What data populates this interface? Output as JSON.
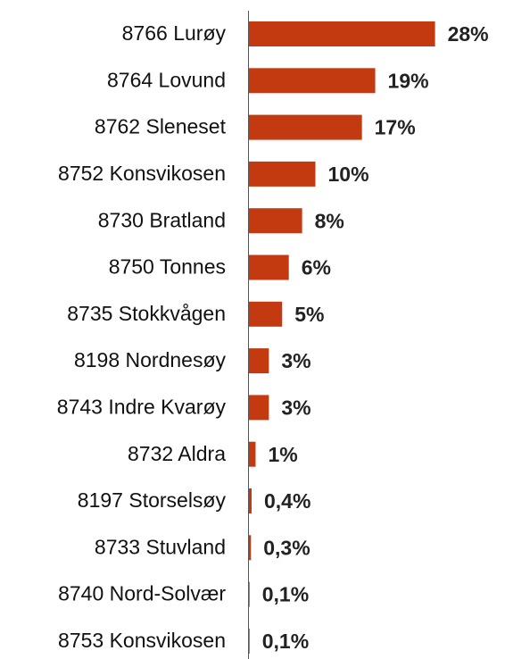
{
  "chart_data": {
    "type": "bar",
    "orientation": "horizontal",
    "categories": [
      "8766 Lurøy",
      "8764 Lovund",
      "8762 Sleneset",
      "8752 Konsvikosen",
      "8730 Bratland",
      "8750 Tonnes",
      "8735 Stokkvågen",
      "8198 Nordnesøy",
      "8743 Indre Kvarøy",
      "8732 Aldra",
      "8197 Storselsøy",
      "8733 Stuvland",
      "8740 Nord-Solvær",
      "8753 Konsvikosen"
    ],
    "values": [
      28,
      19,
      17,
      10,
      8,
      6,
      5,
      3,
      3,
      1,
      0.4,
      0.3,
      0.1,
      0.1
    ],
    "value_labels": [
      "28%",
      "19%",
      "17%",
      "10%",
      "8%",
      "6%",
      "5%",
      "3%",
      "3%",
      "1%",
      "0,4%",
      "0,3%",
      "0,1%",
      "0,1%"
    ],
    "color": "#c43a10"
  }
}
